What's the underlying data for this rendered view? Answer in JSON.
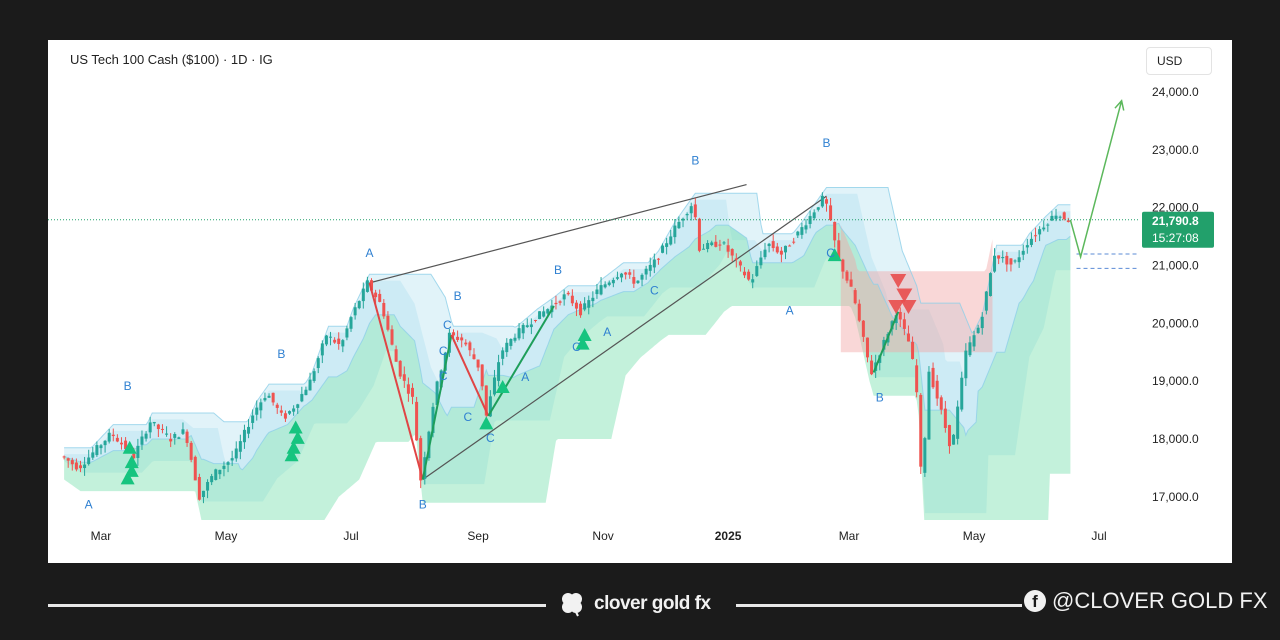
{
  "header": {
    "title": "US Tech 100 Cash ($100) · 1D · IG",
    "currency_button": "USD"
  },
  "price_tag": {
    "price": "21,790.8",
    "countdown": "15:27:08"
  },
  "footer": {
    "brand": "clover gold fx",
    "social_handle": "@CLOVER GOLD FX"
  },
  "colors": {
    "bull": "#26a69a",
    "bear": "#ef5350",
    "wave_label": "#2f80d1",
    "cloud_green": "#7be0b0",
    "cloud_blue": "#a9dcee",
    "cloud_red": "#f2a7a7",
    "price_tag": "#22a06b",
    "projection": "#5cb85c"
  },
  "chart_data": {
    "type": "line",
    "symbol": "US Tech 100 Cash",
    "interval": "1D",
    "y_axis_side": "right",
    "ylim": [
      16600,
      24900
    ],
    "yticks": [
      "24,000.0",
      "23,000.0",
      "22,000.0",
      "21,000.0",
      "20,000.0",
      "19,000.0",
      "18,000.0",
      "17,000.0"
    ],
    "ytick_values": [
      24000,
      23000,
      22000,
      21000,
      20000,
      19000,
      18000,
      17000
    ],
    "xticks": [
      "Mar",
      "May",
      "Jul",
      "Sep",
      "Nov",
      "2025",
      "Mar",
      "May",
      "Jul"
    ],
    "xtick_dates": [
      "2024-03-01",
      "2024-05-01",
      "2024-07-01",
      "2024-09-01",
      "2024-11-01",
      "2025-01-01",
      "2025-03-01",
      "2025-05-01",
      "2025-07-01"
    ],
    "xlim": [
      "2024-02-10",
      "2025-07-20"
    ],
    "price_path": [
      [
        "2024-02-12",
        17700
      ],
      [
        "2024-02-20",
        17500
      ],
      [
        "2024-02-28",
        17800
      ],
      [
        "2024-03-07",
        18100
      ],
      [
        "2024-03-18",
        17700
      ],
      [
        "2024-03-26",
        18300
      ],
      [
        "2024-04-05",
        18000
      ],
      [
        "2024-04-12",
        18150
      ],
      [
        "2024-04-19",
        17000
      ],
      [
        "2024-04-26",
        17400
      ],
      [
        "2024-05-06",
        17700
      ],
      [
        "2024-05-16",
        18500
      ],
      [
        "2024-05-22",
        18800
      ],
      [
        "2024-05-30",
        18350
      ],
      [
        "2024-06-05",
        18600
      ],
      [
        "2024-06-12",
        19000
      ],
      [
        "2024-06-20",
        19800
      ],
      [
        "2024-06-27",
        19600
      ],
      [
        "2024-07-02",
        20100
      ],
      [
        "2024-07-10",
        20700
      ],
      [
        "2024-07-17",
        20300
      ],
      [
        "2024-07-25",
        19200
      ],
      [
        "2024-08-01",
        18700
      ],
      [
        "2024-08-05",
        17300
      ],
      [
        "2024-08-12",
        18800
      ],
      [
        "2024-08-19",
        19800
      ],
      [
        "2024-08-26",
        19700
      ],
      [
        "2024-09-03",
        19200
      ],
      [
        "2024-09-06",
        18400
      ],
      [
        "2024-09-13",
        19500
      ],
      [
        "2024-09-20",
        19800
      ],
      [
        "2024-09-30",
        20100
      ],
      [
        "2024-10-08",
        20300
      ],
      [
        "2024-10-15",
        20500
      ],
      [
        "2024-10-22",
        20200
      ],
      [
        "2024-10-31",
        20600
      ],
      [
        "2024-11-11",
        20900
      ],
      [
        "2024-11-18",
        20700
      ],
      [
        "2024-11-28",
        21100
      ],
      [
        "2024-12-06",
        21600
      ],
      [
        "2024-12-16",
        22100
      ],
      [
        "2024-12-19",
        21300
      ],
      [
        "2024-12-30",
        21400
      ],
      [
        "2025-01-07",
        21000
      ],
      [
        "2025-01-13",
        20700
      ],
      [
        "2025-01-21",
        21400
      ],
      [
        "2025-01-28",
        21200
      ],
      [
        "2025-02-06",
        21600
      ],
      [
        "2025-02-18",
        22200
      ],
      [
        "2025-02-25",
        21100
      ],
      [
        "2025-03-04",
        20500
      ],
      [
        "2025-03-11",
        19400
      ],
      [
        "2025-03-13",
        19150
      ],
      [
        "2025-03-25",
        20200
      ],
      [
        "2025-04-01",
        19600
      ],
      [
        "2025-04-04",
        18800
      ],
      [
        "2025-04-07",
        16800
      ],
      [
        "2025-04-09",
        19300
      ],
      [
        "2025-04-15",
        18600
      ],
      [
        "2025-04-21",
        17800
      ],
      [
        "2025-04-28",
        19500
      ],
      [
        "2025-05-05",
        20000
      ],
      [
        "2025-05-12",
        21200
      ],
      [
        "2025-05-21",
        21000
      ],
      [
        "2025-05-28",
        21400
      ],
      [
        "2025-06-05",
        21700
      ],
      [
        "2025-06-11",
        21900
      ],
      [
        "2025-06-17",
        21790
      ]
    ],
    "current_price": 21790.8,
    "trendlines": [
      {
        "from": [
          "2024-07-10",
          20700
        ],
        "to": [
          "2025-01-10",
          22400
        ]
      },
      {
        "from": [
          "2024-08-05",
          17300
        ],
        "to": [
          "2025-02-18",
          22200
        ]
      }
    ],
    "zigzag": [
      {
        "from": [
          "2024-07-10",
          20700
        ],
        "to": [
          "2024-08-05",
          17300
        ],
        "dir": "down"
      },
      {
        "from": [
          "2024-08-05",
          17300
        ],
        "to": [
          "2024-08-19",
          19800
        ],
        "dir": "up"
      },
      {
        "from": [
          "2024-08-19",
          19800
        ],
        "to": [
          "2024-09-06",
          18400
        ],
        "dir": "down"
      },
      {
        "from": [
          "2024-09-06",
          18400
        ],
        "to": [
          "2024-10-08",
          20300
        ],
        "dir": "up"
      },
      {
        "from": [
          "2025-03-13",
          19150
        ],
        "to": [
          "2025-03-25",
          20200
        ],
        "dir": "up"
      }
    ],
    "projection": [
      [
        "2025-06-17",
        21790
      ],
      [
        "2025-06-22",
        21150
      ],
      [
        "2025-07-12",
        23850
      ]
    ],
    "dashed_levels": [
      21200,
      20950
    ],
    "wave_labels": [
      {
        "text": "A",
        "date": "2024-02-24",
        "price": 16800
      },
      {
        "text": "B",
        "date": "2024-03-14",
        "price": 18850
      },
      {
        "text": "B",
        "date": "2024-05-28",
        "price": 19400
      },
      {
        "text": "A",
        "date": "2024-07-10",
        "price": 21150
      },
      {
        "text": "B",
        "date": "2024-08-05",
        "price": 16800
      },
      {
        "text": "B",
        "date": "2024-08-22",
        "price": 20400
      },
      {
        "text": "C",
        "date": "2024-08-17",
        "price": 19900
      },
      {
        "text": "C",
        "date": "2024-08-15",
        "price": 19450
      },
      {
        "text": "C",
        "date": "2024-08-15",
        "price": 19020
      },
      {
        "text": "C",
        "date": "2024-08-27",
        "price": 18310
      },
      {
        "text": "C",
        "date": "2024-09-07",
        "price": 17950
      },
      {
        "text": "A",
        "date": "2024-09-24",
        "price": 19000
      },
      {
        "text": "B",
        "date": "2024-10-10",
        "price": 20850
      },
      {
        "text": "C",
        "date": "2024-10-19",
        "price": 19520
      },
      {
        "text": "A",
        "date": "2024-11-03",
        "price": 19780
      },
      {
        "text": "C",
        "date": "2024-11-26",
        "price": 20500
      },
      {
        "text": "B",
        "date": "2024-12-16",
        "price": 22750
      },
      {
        "text": "A",
        "date": "2025-01-31",
        "price": 20150
      },
      {
        "text": "B",
        "date": "2025-02-18",
        "price": 23050
      },
      {
        "text": "C",
        "date": "2025-02-20",
        "price": 21150
      },
      {
        "text": "B",
        "date": "2025-03-16",
        "price": 18650
      }
    ],
    "buy_signals": [
      {
        "date": "2024-03-15",
        "price": 17850
      },
      {
        "date": "2024-03-16",
        "price": 17600
      },
      {
        "date": "2024-03-16",
        "price": 17450
      },
      {
        "date": "2024-03-14",
        "price": 17320
      },
      {
        "date": "2024-06-04",
        "price": 18200
      },
      {
        "date": "2024-06-05",
        "price": 18020
      },
      {
        "date": "2024-06-03",
        "price": 17850
      },
      {
        "date": "2024-06-02",
        "price": 17720
      },
      {
        "date": "2024-09-05",
        "price": 18270
      },
      {
        "date": "2024-09-13",
        "price": 18900
      },
      {
        "date": "2024-10-22",
        "price": 19650
      },
      {
        "date": "2024-10-23",
        "price": 19800
      },
      {
        "date": "2025-02-22",
        "price": 21180
      }
    ],
    "sell_signals": [
      {
        "date": "2025-03-25",
        "price": 20750
      },
      {
        "date": "2025-03-28",
        "price": 20500
      },
      {
        "date": "2025-03-24",
        "price": 20300
      },
      {
        "date": "2025-03-30",
        "price": 20300
      }
    ],
    "grid": false,
    "legend": "none"
  }
}
